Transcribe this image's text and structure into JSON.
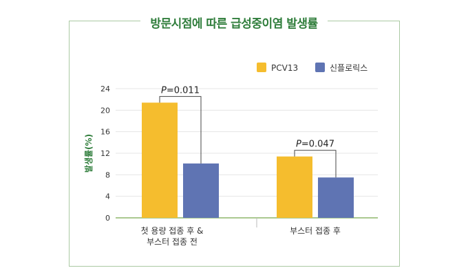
{
  "colors": {
    "frame": "#aac9a2",
    "title": "#2f7d3b",
    "pcv13": "#f5bd2e",
    "synflorix": "#5f74b3",
    "axis": "#8db56a"
  },
  "chart_data": {
    "type": "bar",
    "title": "방문시점에 따른 급성중이염 발생률",
    "ylabel": "발생률(%)",
    "ylim": [
      0,
      24
    ],
    "yticks": [
      0,
      4,
      8,
      12,
      16,
      20,
      24
    ],
    "grid": true,
    "legend_position": "top-right",
    "groups": [
      {
        "label_lines": [
          "첫 용량 접종 후 &",
          "부스터 접종 전"
        ],
        "p_value": "P=0.011"
      },
      {
        "label_lines": [
          "부스터 접종 후"
        ],
        "p_value": "P=0.047"
      }
    ],
    "series": [
      {
        "name": "PCV13",
        "color": "#f5bd2e",
        "values": [
          21.4,
          11.4
        ]
      },
      {
        "name": "신플로릭스",
        "color": "#5f74b3",
        "values": [
          10.1,
          7.5
        ]
      }
    ]
  }
}
